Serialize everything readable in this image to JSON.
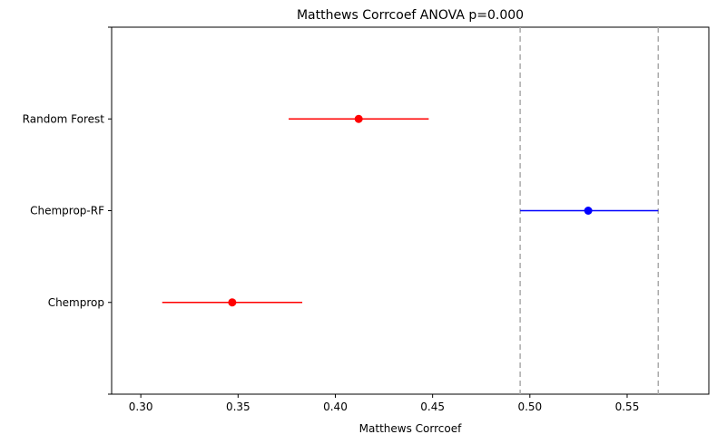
{
  "chart_data": {
    "type": "scatter",
    "title": "Matthews Corrcoef ANOVA p=0.000",
    "xlabel": "Matthews Corrcoef",
    "ylabel": "",
    "xlim": [
      0.285,
      0.592
    ],
    "xticks": [
      "0.30",
      "0.35",
      "0.40",
      "0.45",
      "0.50",
      "0.55"
    ],
    "grid": false,
    "categories": [
      "Chemprop",
      "Chemprop-RF",
      "Random Forest"
    ],
    "series": [
      {
        "mean": 0.347,
        "lower": 0.311,
        "upper": 0.383,
        "color": "#ff0000"
      },
      {
        "mean": 0.53,
        "lower": 0.495,
        "upper": 0.566,
        "color": "#0000ff"
      },
      {
        "mean": 0.412,
        "lower": 0.376,
        "upper": 0.448,
        "color": "#ff0000"
      }
    ],
    "reference_lines": [
      0.495,
      0.566
    ],
    "reference_line_color": "#aaaaaa"
  }
}
